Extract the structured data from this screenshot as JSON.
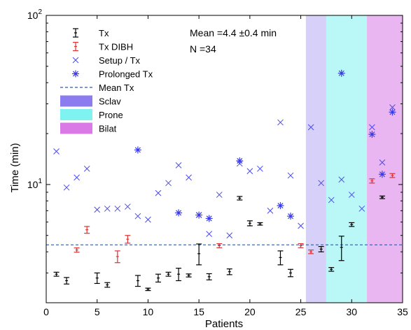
{
  "chart_data": {
    "type": "scatter",
    "xlabel": "Patients",
    "ylabel": "Time (min)",
    "xlim": [
      0,
      35
    ],
    "ylim": [
      2,
      100
    ],
    "yscale": "log",
    "x_ticks": [
      0,
      5,
      10,
      15,
      20,
      25,
      30,
      35
    ],
    "y_ticks": [
      {
        "value": 10,
        "base": "10",
        "exp": "1"
      },
      {
        "value": 100,
        "base": "10",
        "exp": "2"
      }
    ],
    "legend_position": "top-left",
    "annotations": [
      "Mean =4.4 ±0.4 min",
      "N =34"
    ],
    "colors": {
      "tx": "#000000",
      "tx_dibh": "#e03131",
      "setup": "#4a4af0",
      "prolonged": "#3a3ae8",
      "mean": "#2f5aa8",
      "sclav": "#8b7cf0",
      "prone": "#7ff3f0",
      "bilat": "#d97ae6"
    },
    "regions": [
      {
        "name": "Sclav",
        "x": [
          25.5,
          27.5
        ],
        "color": "#8b7cf0"
      },
      {
        "name": "Prone",
        "x": [
          27.5,
          31.5
        ],
        "color": "#7ff3f0"
      },
      {
        "name": "Bilat",
        "x": [
          31.5,
          35
        ],
        "color": "#d97ae6"
      }
    ],
    "mean_tx": 4.4,
    "series": [
      {
        "name": "Tx",
        "marker": "errorbar",
        "points": [
          {
            "x": 1,
            "y": 2.95,
            "err": 0.08
          },
          {
            "x": 2,
            "y": 2.7,
            "err": 0.12
          },
          {
            "x": 5,
            "y": 2.8,
            "err": 0.2
          },
          {
            "x": 6,
            "y": 2.55,
            "err": 0.08
          },
          {
            "x": 9,
            "y": 2.7,
            "err": 0.2
          },
          {
            "x": 10,
            "y": 2.4,
            "err": 0.04
          },
          {
            "x": 11,
            "y": 2.8,
            "err": 0.15
          },
          {
            "x": 12,
            "y": 2.95,
            "err": 0.08
          },
          {
            "x": 13,
            "y": 2.95,
            "err": 0.25
          },
          {
            "x": 14,
            "y": 2.9,
            "err": 0.06
          },
          {
            "x": 15,
            "y": 3.9,
            "err": 0.55
          },
          {
            "x": 16,
            "y": 2.85,
            "err": 0.12
          },
          {
            "x": 18,
            "y": 3.05,
            "err": 0.12
          },
          {
            "x": 19,
            "y": 8.3,
            "err": 0.2
          },
          {
            "x": 20,
            "y": 5.9,
            "err": 0.2
          },
          {
            "x": 21,
            "y": 5.85,
            "err": 0.1
          },
          {
            "x": 23,
            "y": 3.7,
            "err": 0.35
          },
          {
            "x": 24,
            "y": 3.0,
            "err": 0.15
          },
          {
            "x": 27,
            "y": 4.15,
            "err": 0.15
          },
          {
            "x": 28,
            "y": 3.15,
            "err": 0.08
          },
          {
            "x": 29,
            "y": 4.25,
            "err": 0.7
          },
          {
            "x": 30,
            "y": 5.8,
            "err": 0.15
          },
          {
            "x": 33,
            "y": 8.4,
            "err": 0.15
          }
        ]
      },
      {
        "name": "Tx DIBH",
        "marker": "errorbar",
        "points": [
          {
            "x": 3,
            "y": 4.1,
            "err": 0.12
          },
          {
            "x": 4,
            "y": 5.4,
            "err": 0.25
          },
          {
            "x": 7,
            "y": 3.75,
            "err": 0.3
          },
          {
            "x": 8,
            "y": 4.75,
            "err": 0.25
          },
          {
            "x": 17,
            "y": 4.35,
            "err": 0.12
          },
          {
            "x": 25,
            "y": 4.35,
            "err": 0.12
          },
          {
            "x": 26,
            "y": 4.0,
            "err": 0.1
          },
          {
            "x": 32,
            "y": 10.5,
            "err": 0.3
          },
          {
            "x": 34,
            "y": 11.3,
            "err": 0.3
          }
        ]
      },
      {
        "name": "Setup / Tx",
        "marker": "x",
        "points": [
          {
            "x": 1,
            "y": 15.7
          },
          {
            "x": 2,
            "y": 9.6
          },
          {
            "x": 3,
            "y": 11.0
          },
          {
            "x": 4,
            "y": 12.4
          },
          {
            "x": 5,
            "y": 7.1
          },
          {
            "x": 6,
            "y": 7.2
          },
          {
            "x": 7,
            "y": 7.2
          },
          {
            "x": 8,
            "y": 7.4
          },
          {
            "x": 9,
            "y": 6.5
          },
          {
            "x": 10,
            "y": 6.2
          },
          {
            "x": 11,
            "y": 8.9
          },
          {
            "x": 12,
            "y": 10.2
          },
          {
            "x": 13,
            "y": 13.0
          },
          {
            "x": 14,
            "y": 11.0
          },
          {
            "x": 15,
            "y": 6.6
          },
          {
            "x": 16,
            "y": 5.1
          },
          {
            "x": 17,
            "y": 8.7
          },
          {
            "x": 18,
            "y": 5.0
          },
          {
            "x": 19,
            "y": 13.3
          },
          {
            "x": 20,
            "y": 12.0
          },
          {
            "x": 21,
            "y": 12.4
          },
          {
            "x": 22,
            "y": 7.0
          },
          {
            "x": 23,
            "y": 23.3
          },
          {
            "x": 24,
            "y": 11.3
          },
          {
            "x": 25,
            "y": 5.7
          },
          {
            "x": 26,
            "y": 21.8
          },
          {
            "x": 27,
            "y": 10.2
          },
          {
            "x": 28,
            "y": 8.1
          },
          {
            "x": 29,
            "y": 10.7
          },
          {
            "x": 30,
            "y": 8.7
          },
          {
            "x": 31,
            "y": 7.2
          },
          {
            "x": 32,
            "y": 21.8
          },
          {
            "x": 33,
            "y": 13.5
          },
          {
            "x": 34,
            "y": 28.6
          }
        ]
      },
      {
        "name": "Prolonged Tx",
        "marker": "asterisk",
        "points": [
          {
            "x": 9,
            "y": 16.0
          },
          {
            "x": 13,
            "y": 6.8
          },
          {
            "x": 15,
            "y": 6.6
          },
          {
            "x": 16,
            "y": 6.3
          },
          {
            "x": 19,
            "y": 13.8
          },
          {
            "x": 23,
            "y": 7.5
          },
          {
            "x": 24,
            "y": 6.5
          },
          {
            "x": 29,
            "y": 45.5
          },
          {
            "x": 32,
            "y": 19.8
          },
          {
            "x": 33,
            "y": 11.5
          },
          {
            "x": 34,
            "y": 26.8
          }
        ]
      }
    ],
    "legend": [
      {
        "label": "Tx",
        "kind": "errorbar",
        "color": "#000000"
      },
      {
        "label": "Tx DIBH",
        "kind": "errorbar",
        "color": "#e03131"
      },
      {
        "label": "Setup / Tx",
        "kind": "x",
        "color": "#4a4af0"
      },
      {
        "label": "Prolonged Tx",
        "kind": "asterisk",
        "color": "#3a3ae8"
      },
      {
        "label": "Mean Tx",
        "kind": "dashed",
        "color": "#2f5aa8"
      },
      {
        "label": "Sclav",
        "kind": "patch",
        "color": "#8b7cf0"
      },
      {
        "label": "Prone",
        "kind": "patch",
        "color": "#7ff3f0"
      },
      {
        "label": "Bilat",
        "kind": "patch",
        "color": "#d97ae6"
      }
    ]
  }
}
